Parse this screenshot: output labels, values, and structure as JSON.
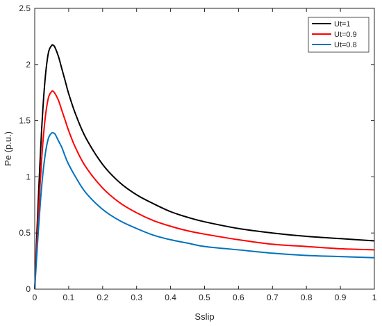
{
  "chart_data": {
    "type": "line",
    "xlabel": "Sslip",
    "ylabel": "Pe (p.u.)",
    "xlim": [
      0,
      1
    ],
    "ylim": [
      0,
      2.5
    ],
    "xticks": [
      0,
      0.1,
      0.2,
      0.3,
      0.4,
      0.5,
      0.6,
      0.7,
      0.8,
      0.9,
      1
    ],
    "yticks": [
      0,
      0.5,
      1,
      1.5,
      2,
      2.5
    ],
    "xtick_labels": [
      "0",
      "0.1",
      "0.2",
      "0.3",
      "0.4",
      "0.5",
      "0.6",
      "0.7",
      "0.8",
      "0.9",
      "1"
    ],
    "ytick_labels": [
      "0",
      "0.5",
      "1",
      "1.5",
      "2",
      "2.5"
    ],
    "grid": false,
    "legend_position": "top-right",
    "x": [
      0,
      0.005,
      0.01,
      0.02,
      0.03,
      0.04,
      0.05,
      0.055,
      0.06,
      0.07,
      0.08,
      0.09,
      0.1,
      0.12,
      0.15,
      0.2,
      0.25,
      0.3,
      0.35,
      0.4,
      0.45,
      0.5,
      0.6,
      0.7,
      0.8,
      0.9,
      1.0
    ],
    "series": [
      {
        "name": "Ut=1",
        "color": "#000000",
        "values": [
          0,
          0.39,
          0.76,
          1.4,
          1.85,
          2.1,
          2.17,
          2.17,
          2.15,
          2.07,
          1.96,
          1.85,
          1.74,
          1.56,
          1.35,
          1.11,
          0.95,
          0.84,
          0.76,
          0.69,
          0.64,
          0.6,
          0.54,
          0.5,
          0.47,
          0.45,
          0.43
        ]
      },
      {
        "name": "Ut=0.9",
        "color": "#ff0000",
        "values": [
          0,
          0.32,
          0.62,
          1.14,
          1.5,
          1.7,
          1.76,
          1.76,
          1.74,
          1.68,
          1.59,
          1.5,
          1.41,
          1.26,
          1.09,
          0.9,
          0.77,
          0.68,
          0.61,
          0.56,
          0.52,
          0.49,
          0.44,
          0.4,
          0.38,
          0.36,
          0.35
        ]
      },
      {
        "name": "Ut=0.8",
        "color": "#0072bd",
        "values": [
          0,
          0.25,
          0.49,
          0.9,
          1.18,
          1.34,
          1.39,
          1.39,
          1.38,
          1.32,
          1.26,
          1.18,
          1.11,
          1.0,
          0.86,
          0.71,
          0.61,
          0.54,
          0.48,
          0.44,
          0.41,
          0.38,
          0.35,
          0.32,
          0.3,
          0.29,
          0.28
        ]
      }
    ]
  }
}
